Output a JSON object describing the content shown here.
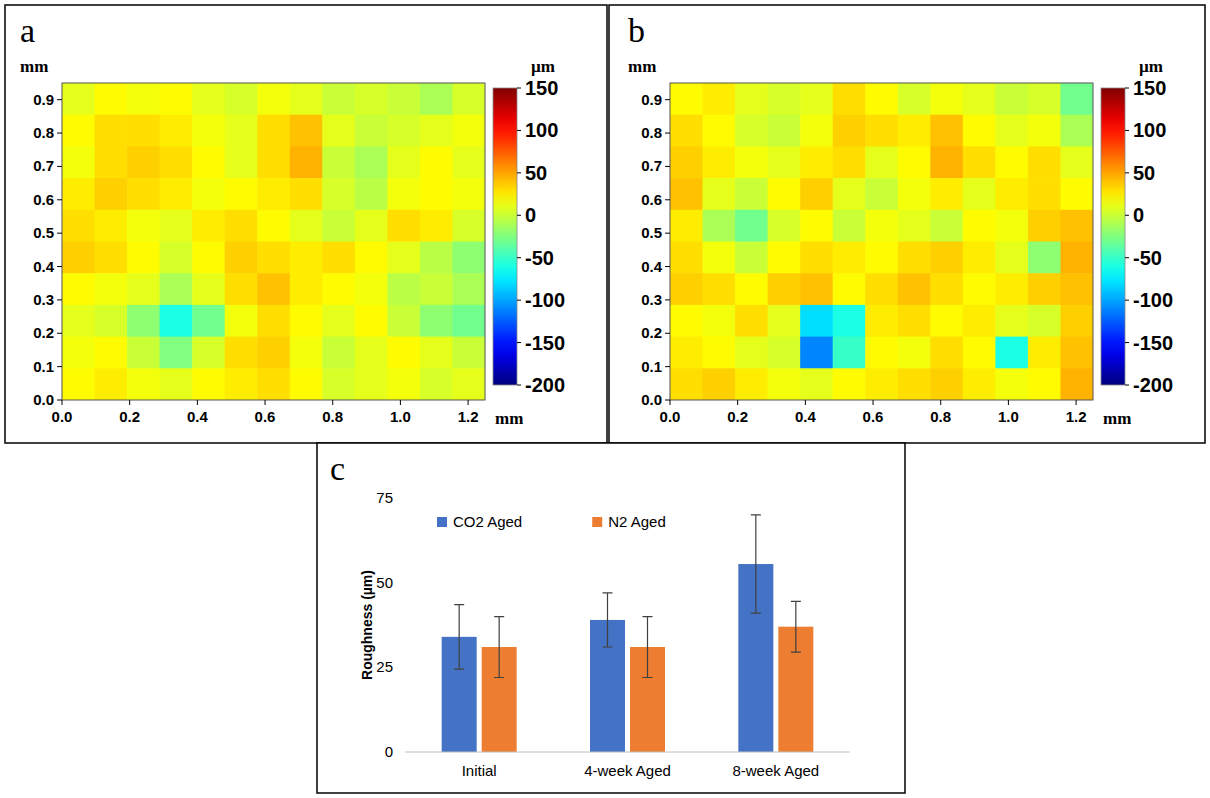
{
  "chart_data": [
    {
      "type": "heatmap",
      "panel_label": "a",
      "x_label": "mm",
      "y_label": "mm",
      "xlim": [
        0,
        1.25
      ],
      "ylim": [
        0,
        0.95
      ],
      "xticks": [
        {
          "value": 0,
          "label": "0.0"
        },
        0.2,
        0.4,
        0.6,
        0.8,
        {
          "value": 1,
          "label": "1.0"
        },
        1.2
      ],
      "yticks": [
        {
          "value": 0,
          "label": "0.0"
        },
        0.1,
        0.2,
        0.3,
        0.4,
        0.5,
        0.6,
        0.7,
        0.8,
        0.9
      ],
      "cells": [
        [
          10,
          20,
          15,
          20,
          10,
          5,
          15,
          10,
          0,
          5,
          0,
          -10,
          5
        ],
        [
          20,
          30,
          30,
          25,
          15,
          10,
          30,
          40,
          10,
          0,
          5,
          10,
          15
        ],
        [
          15,
          30,
          35,
          30,
          20,
          10,
          30,
          45,
          0,
          -10,
          10,
          20,
          10
        ],
        [
          25,
          35,
          30,
          25,
          15,
          20,
          25,
          30,
          5,
          -5,
          15,
          20,
          15
        ],
        [
          30,
          25,
          15,
          10,
          25,
          30,
          20,
          10,
          0,
          10,
          30,
          25,
          5
        ],
        [
          35,
          30,
          20,
          5,
          20,
          35,
          30,
          25,
          30,
          20,
          10,
          -5,
          -20
        ],
        [
          20,
          15,
          10,
          -10,
          10,
          30,
          40,
          25,
          20,
          15,
          -5,
          0,
          -10
        ],
        [
          10,
          5,
          -20,
          -60,
          -30,
          15,
          30,
          20,
          10,
          20,
          0,
          -20,
          -30
        ],
        [
          15,
          20,
          0,
          -25,
          5,
          30,
          35,
          15,
          0,
          10,
          20,
          10,
          0
        ],
        [
          20,
          25,
          15,
          10,
          20,
          25,
          30,
          20,
          5,
          10,
          15,
          5,
          10
        ]
      ],
      "colorbar_label": "µm",
      "colorbar_range": [
        -200,
        150
      ],
      "colorbar_ticks": [
        150,
        100,
        50,
        0,
        -50,
        -100,
        -150,
        -200
      ]
    },
    {
      "type": "heatmap",
      "panel_label": "b",
      "x_label": "mm",
      "y_label": "mm",
      "xlim": [
        0,
        1.25
      ],
      "ylim": [
        0,
        0.95
      ],
      "xticks": [
        {
          "value": 0,
          "label": "0.0"
        },
        0.2,
        0.4,
        0.6,
        0.8,
        {
          "value": 1,
          "label": "1.0"
        },
        1.2
      ],
      "yticks": [
        {
          "value": 0,
          "label": "0.0"
        },
        0.1,
        0.2,
        0.3,
        0.4,
        0.5,
        0.6,
        0.7,
        0.8,
        0.9
      ],
      "cells": [
        [
          20,
          25,
          10,
          5,
          10,
          30,
          20,
          5,
          15,
          10,
          0,
          5,
          -30
        ],
        [
          30,
          20,
          5,
          0,
          15,
          35,
          30,
          25,
          40,
          20,
          10,
          15,
          -10
        ],
        [
          35,
          25,
          15,
          10,
          25,
          30,
          10,
          20,
          45,
          30,
          20,
          30,
          10
        ],
        [
          40,
          10,
          0,
          20,
          35,
          10,
          0,
          15,
          25,
          10,
          25,
          30,
          20
        ],
        [
          25,
          -10,
          -30,
          5,
          20,
          0,
          15,
          10,
          0,
          20,
          15,
          35,
          40
        ],
        [
          30,
          15,
          0,
          20,
          30,
          25,
          20,
          30,
          35,
          25,
          10,
          -20,
          45
        ],
        [
          35,
          30,
          20,
          35,
          40,
          20,
          30,
          40,
          30,
          20,
          25,
          35,
          40
        ],
        [
          20,
          15,
          30,
          10,
          -80,
          -60,
          25,
          30,
          20,
          25,
          10,
          5,
          35
        ],
        [
          25,
          20,
          10,
          5,
          -110,
          -50,
          20,
          15,
          30,
          20,
          -60,
          25,
          40
        ],
        [
          30,
          35,
          25,
          15,
          10,
          20,
          25,
          30,
          35,
          25,
          15,
          20,
          45
        ]
      ],
      "colorbar_label": "µm",
      "colorbar_range": [
        -200,
        150
      ],
      "colorbar_ticks": [
        150,
        100,
        50,
        0,
        -50,
        -100,
        -150,
        -200
      ]
    },
    {
      "type": "bar",
      "panel_label": "c",
      "y_label": "Roughness (µm)",
      "categories": [
        "Initial",
        "4-week Aged",
        "8-week Aged"
      ],
      "series": [
        {
          "name": "CO2 Aged",
          "color": "#4472c4",
          "values": [
            34,
            39,
            55.5
          ],
          "errors": [
            9.5,
            8,
            14.5
          ]
        },
        {
          "name": "N2 Aged",
          "color": "#ed7d31",
          "values": [
            31,
            31,
            37
          ],
          "errors": [
            9,
            9,
            7.5
          ]
        }
      ],
      "ylim": [
        0,
        75
      ],
      "yticks": [
        0,
        25,
        50,
        75
      ],
      "grid": false,
      "legend": "top-left"
    }
  ]
}
